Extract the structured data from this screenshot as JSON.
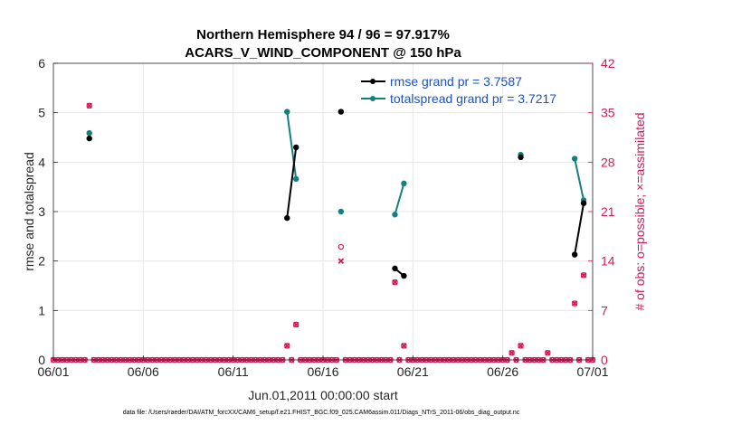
{
  "chart_data": {
    "type": "line",
    "title": "Northern Hemisphere 94 / 96 = 97.917%",
    "subtitle": "ACARS_V_WIND_COMPONENT @ 150 hPa",
    "xlabel": "Jun.01,2011 00:00:00 start",
    "ylabel": "rmse and totalspread",
    "y2label": "# of obs: o=possible; ×=assimilated",
    "footer": "data file: /Users/raeder/DAI/ATM_forcXX/CAM6_setup/f.e21.FHIST_BGC.f09_025.CAM6assim.011/Diags_NTrS_2011-06/obs_diag_output.nc",
    "xlim": [
      1,
      31
    ],
    "ylim": [
      0,
      6
    ],
    "y2lim": [
      0,
      42
    ],
    "x_ticks": [
      1,
      6,
      11,
      16,
      21,
      26,
      31
    ],
    "x_tick_labels": [
      "06/01",
      "06/06",
      "06/11",
      "06/16",
      "06/21",
      "06/26",
      "07/01"
    ],
    "y_ticks": [
      0,
      1,
      2,
      3,
      4,
      5,
      6
    ],
    "y_tick_labels": [
      "0",
      "1",
      "2",
      "3",
      "4",
      "5",
      "6"
    ],
    "y2_ticks": [
      0,
      7,
      14,
      21,
      28,
      35,
      42
    ],
    "y2_tick_labels": [
      "0",
      "7",
      "14",
      "21",
      "28",
      "35",
      "42"
    ],
    "grid": true,
    "legend_position": "top-right",
    "colors": {
      "rmse": "#000000",
      "spread": "#138080",
      "obs": "#d6175a",
      "legend_text": "#1a52c9"
    },
    "series": [
      {
        "name": "rmse grand pr = 3.7587",
        "axis": "left",
        "segments": [
          [
            [
              3.0,
              4.48
            ]
          ],
          [
            [
              14.0,
              2.87
            ],
            [
              14.5,
              4.3
            ]
          ],
          [
            [
              17.0,
              5.02
            ]
          ],
          [
            [
              20.0,
              1.85
            ],
            [
              20.5,
              1.7
            ]
          ],
          [
            [
              27.0,
              4.1
            ]
          ],
          [
            [
              30.0,
              2.13
            ],
            [
              30.5,
              3.17
            ]
          ]
        ]
      },
      {
        "name": "totalspread grand pr = 3.7217",
        "axis": "left",
        "segments": [
          [
            [
              3.0,
              4.59
            ]
          ],
          [
            [
              14.0,
              5.02
            ],
            [
              14.5,
              3.66
            ]
          ],
          [
            [
              17.0,
              3.0
            ]
          ],
          [
            [
              20.0,
              2.94
            ],
            [
              20.5,
              3.57
            ]
          ],
          [
            [
              27.0,
              4.15
            ]
          ],
          [
            [
              30.0,
              4.07
            ],
            [
              30.5,
              3.23
            ]
          ]
        ]
      }
    ],
    "obs_possible": [
      [
        3.0,
        36
      ],
      [
        14.0,
        2
      ],
      [
        14.5,
        5
      ],
      [
        17.0,
        16
      ],
      [
        20.0,
        11
      ],
      [
        20.5,
        2
      ],
      [
        26.5,
        1
      ],
      [
        27.0,
        2
      ],
      [
        28.5,
        1
      ],
      [
        30.0,
        8
      ],
      [
        30.5,
        12
      ]
    ],
    "obs_assimilated": [
      [
        3.0,
        36
      ],
      [
        14.0,
        2
      ],
      [
        14.5,
        5
      ],
      [
        17.0,
        14
      ],
      [
        20.0,
        11
      ],
      [
        20.5,
        2
      ],
      [
        26.5,
        1
      ],
      [
        27.0,
        2
      ],
      [
        28.5,
        1
      ],
      [
        30.0,
        8
      ],
      [
        30.5,
        12
      ]
    ]
  }
}
